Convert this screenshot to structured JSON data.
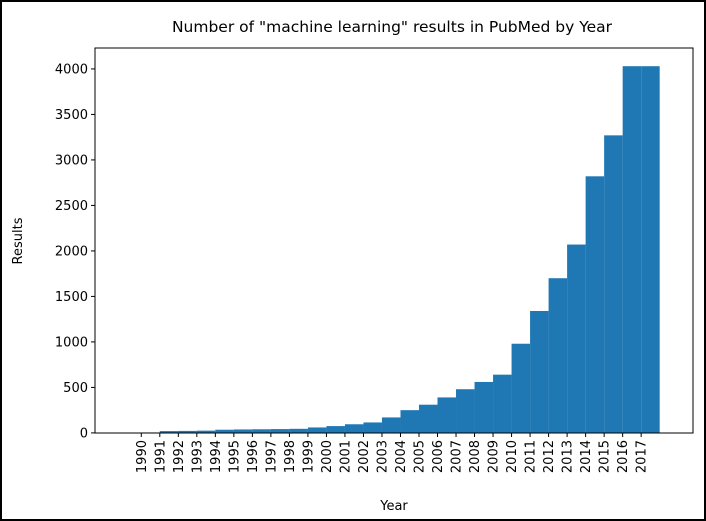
{
  "chart_data": {
    "type": "bar",
    "title": "Number of \"machine learning\" results in PubMed by Year",
    "x_label": "Year",
    "y_label": "Results",
    "x": [
      1990,
      1991,
      1992,
      1993,
      1994,
      1995,
      1996,
      1997,
      1998,
      1999,
      2000,
      2001,
      2002,
      2003,
      2004,
      2005,
      2006,
      2007,
      2008,
      2009,
      2010,
      2011,
      2012,
      2013,
      2014,
      2015,
      2016,
      2017
    ],
    "values": [
      5,
      20,
      22,
      25,
      35,
      38,
      40,
      42,
      45,
      60,
      75,
      95,
      115,
      170,
      250,
      310,
      390,
      480,
      560,
      640,
      980,
      1340,
      1700,
      2070,
      2820,
      3270,
      4030,
      4030
    ],
    "color": "#1f77b4",
    "xlim": [
      1987.5,
      2019.8
    ],
    "xticks": [
      1990,
      1991,
      1992,
      1993,
      1994,
      1995,
      1996,
      1997,
      1998,
      1999,
      2000,
      2001,
      2002,
      2003,
      2004,
      2005,
      2006,
      2007,
      2008,
      2009,
      2010,
      2011,
      2012,
      2013,
      2014,
      2015,
      2016,
      2017
    ],
    "ylim": [
      -1,
      4230
    ],
    "yticks": [
      0,
      500,
      1000,
      1500,
      2000,
      2500,
      3000,
      3500,
      4000
    ],
    "grid": false
  }
}
